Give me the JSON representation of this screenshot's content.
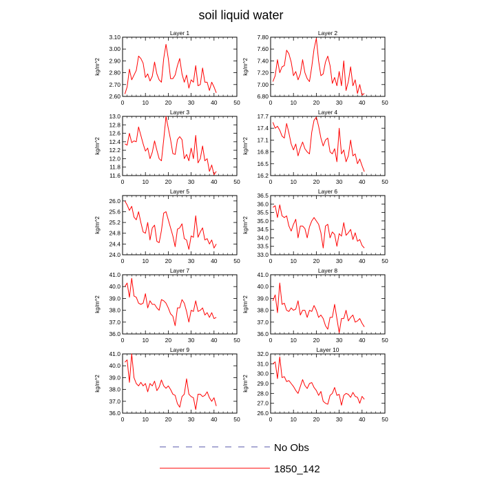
{
  "figure": {
    "title": "soil liquid water",
    "legend": [
      {
        "label": "No Obs",
        "color": "#5555aa",
        "dash": true
      },
      {
        "label": "1850_142",
        "color": "#ff0000",
        "dash": false
      }
    ]
  },
  "chart_data": [
    {
      "type": "line",
      "title": "Layer 1",
      "ylabel": "kg/m^2",
      "xlim": [
        0,
        50
      ],
      "ylim": [
        2.6,
        3.1
      ],
      "xticks": [
        0,
        10,
        20,
        30,
        40,
        50
      ],
      "yticks": [
        "2.60",
        "2.70",
        "2.80",
        "2.90",
        "3.00",
        "3.10"
      ],
      "series": [
        {
          "color": "#ff0000",
          "x": [
            1,
            2,
            3,
            4,
            5,
            6,
            7,
            8,
            9,
            10,
            11,
            12,
            13,
            14,
            15,
            16,
            17,
            18,
            19,
            20,
            21,
            22,
            23,
            24,
            25,
            26,
            27,
            28,
            29,
            30,
            31,
            32,
            33,
            34,
            35,
            36,
            37,
            38,
            39,
            40,
            41
          ],
          "y": [
            2.62,
            2.68,
            2.83,
            2.74,
            2.78,
            2.82,
            2.94,
            2.92,
            2.88,
            2.76,
            2.79,
            2.73,
            2.77,
            2.89,
            2.79,
            2.74,
            2.72,
            2.92,
            3.04,
            2.92,
            2.75,
            2.75,
            2.78,
            2.86,
            2.92,
            2.79,
            2.72,
            2.78,
            2.67,
            2.74,
            2.72,
            2.86,
            2.69,
            2.7,
            2.84,
            2.72,
            2.72,
            2.65,
            2.72,
            2.68,
            2.63
          ]
        }
      ]
    },
    {
      "type": "line",
      "title": "Layer 2",
      "ylabel": "kg/m^2",
      "xlim": [
        0,
        50
      ],
      "ylim": [
        6.8,
        7.8
      ],
      "xticks": [
        0,
        10,
        20,
        30,
        40,
        50
      ],
      "yticks": [
        "6.80",
        "7.00",
        "7.20",
        "7.40",
        "7.60",
        "7.80"
      ],
      "series": [
        {
          "color": "#ff0000",
          "x": [
            1,
            2,
            3,
            4,
            5,
            6,
            7,
            8,
            9,
            10,
            11,
            12,
            13,
            14,
            15,
            16,
            17,
            18,
            19,
            20,
            21,
            22,
            23,
            24,
            25,
            26,
            27,
            28,
            29,
            30,
            31,
            32,
            33,
            34,
            35,
            36,
            37,
            38,
            39,
            40,
            41
          ],
          "y": [
            7.05,
            7.15,
            7.42,
            7.2,
            7.3,
            7.32,
            7.58,
            7.52,
            7.38,
            7.15,
            7.22,
            7.08,
            7.18,
            7.42,
            7.2,
            7.1,
            7.05,
            7.3,
            7.6,
            7.78,
            7.4,
            7.15,
            7.18,
            7.38,
            7.48,
            7.32,
            7.02,
            7.12,
            6.98,
            7.22,
            6.98,
            7.4,
            6.9,
            7.05,
            7.3,
            6.98,
            7.08,
            6.85,
            7.0,
            6.82,
            6.85
          ]
        }
      ]
    },
    {
      "type": "line",
      "title": "Layer 3",
      "ylabel": "kg/m^2",
      "xlim": [
        0,
        50
      ],
      "ylim": [
        11.6,
        13.0
      ],
      "xticks": [
        0,
        10,
        20,
        30,
        40,
        50
      ],
      "yticks": [
        "11.6",
        "11.8",
        "12.0",
        "12.2",
        "12.4",
        "12.6",
        "12.8",
        "13.0"
      ],
      "series": [
        {
          "color": "#ff0000",
          "x": [
            1,
            2,
            3,
            4,
            5,
            6,
            7,
            8,
            9,
            10,
            11,
            12,
            13,
            14,
            15,
            16,
            17,
            18,
            19,
            20,
            21,
            22,
            23,
            24,
            25,
            26,
            27,
            28,
            29,
            30,
            31,
            32,
            33,
            34,
            35,
            36,
            37,
            38,
            39,
            40,
            41
          ],
          "y": [
            12.35,
            12.32,
            12.6,
            12.38,
            12.42,
            12.4,
            12.75,
            12.55,
            12.35,
            12.18,
            12.25,
            12.0,
            12.15,
            12.42,
            12.2,
            12.0,
            11.95,
            12.45,
            13.0,
            12.72,
            12.45,
            12.12,
            12.1,
            12.45,
            12.52,
            12.45,
            12.0,
            12.1,
            11.95,
            12.25,
            12.0,
            12.55,
            11.9,
            12.0,
            12.3,
            11.95,
            12.0,
            11.7,
            11.85,
            11.62,
            11.7
          ]
        }
      ]
    },
    {
      "type": "line",
      "title": "Layer 4",
      "ylabel": "kg/m^2",
      "xlim": [
        0,
        50
      ],
      "ylim": [
        16.2,
        17.7
      ],
      "xticks": [
        0,
        10,
        20,
        30,
        40,
        50
      ],
      "yticks": [
        "16.2",
        "16.5",
        "16.8",
        "17.1",
        "17.4",
        "17.7"
      ],
      "series": [
        {
          "color": "#ff0000",
          "x": [
            1,
            2,
            3,
            4,
            5,
            6,
            7,
            8,
            9,
            10,
            11,
            12,
            13,
            14,
            15,
            16,
            17,
            18,
            19,
            20,
            21,
            22,
            23,
            24,
            25,
            26,
            27,
            28,
            29,
            30,
            31,
            32,
            33,
            34,
            35,
            36,
            37,
            38,
            39,
            40,
            41
          ],
          "y": [
            17.55,
            17.4,
            17.45,
            17.35,
            17.2,
            17.15,
            17.52,
            17.28,
            17.0,
            16.85,
            17.0,
            16.7,
            16.9,
            17.05,
            16.88,
            16.8,
            16.75,
            17.3,
            17.6,
            17.68,
            17.45,
            17.15,
            16.95,
            17.1,
            17.15,
            16.8,
            16.75,
            16.88,
            16.55,
            17.4,
            16.75,
            16.85,
            16.55,
            16.7,
            17.1,
            16.7,
            16.75,
            16.5,
            16.62,
            16.45,
            16.3
          ]
        }
      ]
    },
    {
      "type": "line",
      "title": "Layer 5",
      "ylabel": "kg/m^2",
      "xlim": [
        0,
        50
      ],
      "ylim": [
        24.0,
        26.2
      ],
      "xticks": [
        0,
        10,
        20,
        30,
        40,
        50
      ],
      "yticks": [
        "24.0",
        "24.4",
        "24.8",
        "25.2",
        "25.6",
        "26.0"
      ],
      "series": [
        {
          "color": "#ff0000",
          "x": [
            1,
            2,
            3,
            4,
            5,
            6,
            7,
            8,
            9,
            10,
            11,
            12,
            13,
            14,
            15,
            16,
            17,
            18,
            19,
            20,
            21,
            22,
            23,
            24,
            25,
            26,
            27,
            28,
            29,
            30,
            31,
            32,
            33,
            34,
            35,
            36,
            37,
            38,
            39,
            40,
            41
          ],
          "y": [
            26.0,
            25.85,
            25.65,
            25.8,
            25.4,
            25.3,
            25.6,
            25.2,
            24.85,
            24.8,
            25.2,
            24.55,
            25.0,
            25.1,
            24.5,
            24.45,
            24.9,
            25.55,
            25.6,
            25.3,
            25.0,
            24.7,
            24.3,
            24.95,
            25.0,
            25.15,
            24.6,
            24.55,
            24.2,
            24.7,
            24.65,
            25.45,
            24.65,
            24.85,
            25.0,
            24.55,
            24.6,
            24.4,
            24.55,
            24.25,
            24.4
          ]
        }
      ]
    },
    {
      "type": "line",
      "title": "Layer 6",
      "ylabel": "kg/m^2",
      "xlim": [
        0,
        50
      ],
      "ylim": [
        33.0,
        36.5
      ],
      "xticks": [
        0,
        10,
        20,
        30,
        40,
        50
      ],
      "yticks": [
        "33.0",
        "33.5",
        "34.0",
        "34.5",
        "35.0",
        "35.5",
        "36.0",
        "36.5"
      ],
      "series": [
        {
          "color": "#ff0000",
          "x": [
            1,
            2,
            3,
            4,
            5,
            6,
            7,
            8,
            9,
            10,
            11,
            12,
            13,
            14,
            15,
            16,
            17,
            18,
            19,
            20,
            21,
            22,
            23,
            24,
            25,
            26,
            27,
            28,
            29,
            30,
            31,
            32,
            33,
            34,
            35,
            36,
            37,
            38,
            39,
            40,
            41
          ],
          "y": [
            35.8,
            35.9,
            35.2,
            35.95,
            35.3,
            35.2,
            35.3,
            34.7,
            34.4,
            34.8,
            35.1,
            34.0,
            34.7,
            34.7,
            34.55,
            34.0,
            34.65,
            35.0,
            35.2,
            35.0,
            34.8,
            34.3,
            33.4,
            34.7,
            34.8,
            34.0,
            34.35,
            34.2,
            33.5,
            34.25,
            34.1,
            34.9,
            34.15,
            34.3,
            34.5,
            33.9,
            34.3,
            33.8,
            33.9,
            33.55,
            33.4
          ]
        }
      ]
    },
    {
      "type": "line",
      "title": "Layer 7",
      "ylabel": "kg/m^2",
      "xlim": [
        0,
        50
      ],
      "ylim": [
        36.0,
        41.0
      ],
      "xticks": [
        0,
        10,
        20,
        30,
        40,
        50
      ],
      "yticks": [
        "36.0",
        "37.0",
        "38.0",
        "39.0",
        "40.0",
        "41.0"
      ],
      "series": [
        {
          "color": "#ff0000",
          "x": [
            1,
            2,
            3,
            4,
            5,
            6,
            7,
            8,
            9,
            10,
            11,
            12,
            13,
            14,
            15,
            16,
            17,
            18,
            19,
            20,
            21,
            22,
            23,
            24,
            25,
            26,
            27,
            28,
            29,
            30,
            31,
            32,
            33,
            34,
            35,
            36,
            37,
            38,
            39,
            40,
            41
          ],
          "y": [
            40.0,
            40.3,
            39.1,
            40.7,
            39.2,
            39.1,
            38.6,
            38.5,
            38.6,
            39.4,
            38.2,
            38.8,
            38.5,
            38.5,
            38.2,
            38.0,
            38.9,
            38.8,
            38.6,
            38.2,
            37.7,
            37.5,
            36.7,
            38.2,
            38.2,
            38.9,
            38.6,
            37.9,
            37.0,
            38.0,
            37.9,
            38.8,
            37.9,
            38.0,
            38.2,
            37.6,
            37.8,
            37.4,
            37.8,
            37.3,
            37.4
          ]
        }
      ]
    },
    {
      "type": "line",
      "title": "Layer 8",
      "ylabel": "kg/m^2",
      "xlim": [
        0,
        50
      ],
      "ylim": [
        36.0,
        41.0
      ],
      "xticks": [
        0,
        10,
        20,
        30,
        40,
        50
      ],
      "yticks": [
        "36.0",
        "37.0",
        "38.0",
        "39.0",
        "40.0",
        "41.0"
      ],
      "series": [
        {
          "color": "#ff0000",
          "x": [
            1,
            2,
            3,
            4,
            5,
            6,
            7,
            8,
            9,
            10,
            11,
            12,
            13,
            14,
            15,
            16,
            17,
            18,
            19,
            20,
            21,
            22,
            23,
            24,
            25,
            26,
            27,
            28,
            29,
            30,
            31,
            32,
            33,
            34,
            35,
            36,
            37,
            38,
            39,
            40,
            41
          ],
          "y": [
            38.8,
            39.3,
            37.8,
            40.3,
            38.5,
            38.6,
            38.0,
            37.9,
            38.2,
            38.0,
            38.1,
            38.8,
            37.6,
            38.0,
            38.0,
            37.4,
            38.0,
            37.9,
            38.4,
            38.0,
            37.4,
            37.6,
            37.3,
            36.7,
            36.4,
            37.4,
            37.4,
            38.5,
            37.3,
            36.1,
            37.3,
            37.3,
            38.0,
            37.1,
            37.4,
            37.6,
            37.0,
            37.1,
            37.3,
            36.9,
            36.6
          ]
        }
      ]
    },
    {
      "type": "line",
      "title": "Layer 9",
      "ylabel": "kg/m^2",
      "xlim": [
        0,
        50
      ],
      "ylim": [
        36.0,
        41.0
      ],
      "xticks": [
        0,
        10,
        20,
        30,
        40,
        50
      ],
      "yticks": [
        "36.0",
        "37.0",
        "38.0",
        "39.0",
        "40.0",
        "41.0"
      ],
      "series": [
        {
          "color": "#ff0000",
          "x": [
            1,
            2,
            3,
            4,
            5,
            6,
            7,
            8,
            9,
            10,
            11,
            12,
            13,
            14,
            15,
            16,
            17,
            18,
            19,
            20,
            21,
            22,
            23,
            24,
            25,
            26,
            27,
            28,
            29,
            30,
            31,
            32,
            33,
            34,
            35,
            36,
            37,
            38,
            39,
            40,
            41
          ],
          "y": [
            40.3,
            40.5,
            38.6,
            41.0,
            39.0,
            38.5,
            38.3,
            38.6,
            38.3,
            38.5,
            37.8,
            38.5,
            38.3,
            38.7,
            37.9,
            38.2,
            38.8,
            38.3,
            38.1,
            38.3,
            38.0,
            37.6,
            37.5,
            36.8,
            36.5,
            37.4,
            37.6,
            38.9,
            37.6,
            37.4,
            37.3,
            36.3,
            37.6,
            37.6,
            37.4,
            37.5,
            37.8,
            37.3,
            37.0,
            37.3,
            36.6
          ]
        }
      ]
    },
    {
      "type": "line",
      "title": "Layer 10",
      "ylabel": "kg/m^2",
      "xlim": [
        0,
        50
      ],
      "ylim": [
        26.0,
        32.0
      ],
      "xticks": [
        0,
        10,
        20,
        30,
        40,
        50
      ],
      "yticks": [
        "26.0",
        "27.0",
        "28.0",
        "29.0",
        "30.0",
        "31.0",
        "32.0"
      ],
      "series": [
        {
          "color": "#ff0000",
          "x": [
            1,
            2,
            3,
            4,
            5,
            6,
            7,
            8,
            9,
            10,
            11,
            12,
            13,
            14,
            15,
            16,
            17,
            18,
            19,
            20,
            21,
            22,
            23,
            24,
            25,
            26,
            27,
            28,
            29,
            30,
            31,
            32,
            33,
            34,
            35,
            36,
            37,
            38,
            39,
            40,
            41
          ],
          "y": [
            31.0,
            31.2,
            29.5,
            31.7,
            29.6,
            29.7,
            29.2,
            29.3,
            29.0,
            28.7,
            28.3,
            28.0,
            28.7,
            29.4,
            28.8,
            28.5,
            29.0,
            29.1,
            28.6,
            28.3,
            27.8,
            28.2,
            27.2,
            27.0,
            26.9,
            27.8,
            28.0,
            28.6,
            27.8,
            27.9,
            26.8,
            27.8,
            28.0,
            27.9,
            27.6,
            28.1,
            27.7,
            27.6,
            27.0,
            27.7,
            27.4
          ]
        }
      ]
    }
  ]
}
